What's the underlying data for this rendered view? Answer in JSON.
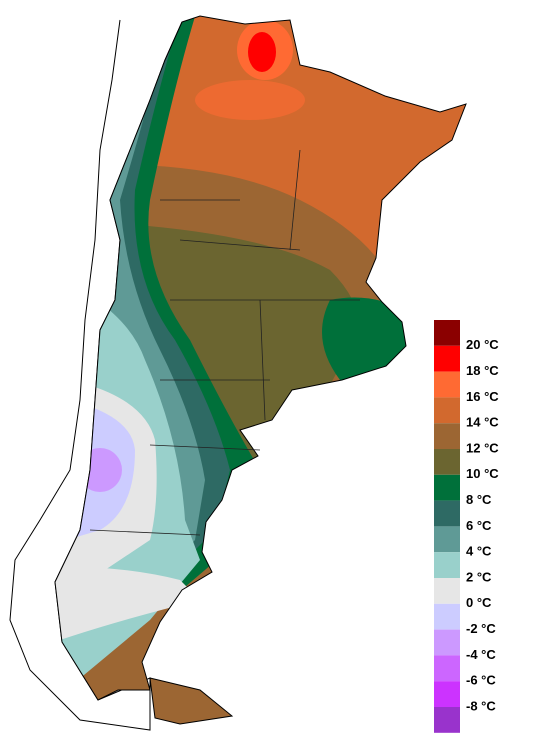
{
  "legend": {
    "labels": [
      "20 °C",
      "18 °C",
      "16 °C",
      "14 °C",
      "12 °C",
      "10 °C",
      "8 °C",
      "6 °C",
      "4 °C",
      "2 °C",
      "0 °C",
      "-2 °C",
      "-4 °C",
      "-6 °C",
      "-8 °C"
    ],
    "colors": [
      "#8b0000",
      "#ff0000",
      "#ff6a33",
      "#d2692e",
      "#9c6633",
      "#6b6530",
      "#00703a",
      "#2e6a64",
      "#5f9a96",
      "#99d0cb",
      "#e6e6e6",
      "#ccccff",
      "#cc99ff",
      "#cc66ff",
      "#cc33ff",
      "#9933cc"
    ]
  }
}
